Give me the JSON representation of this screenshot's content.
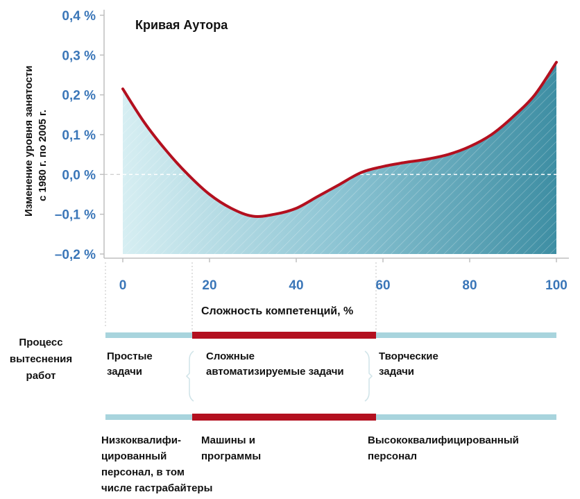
{
  "chart_data": {
    "type": "area",
    "title": "Кривая Аутора",
    "xlabel": "Сложность компетенций, %",
    "ylabel_lines": [
      "Изменение уровня занятости",
      "с 1980 г. по 2005 г."
    ],
    "xlim": [
      0,
      100
    ],
    "ylim": [
      -0.2,
      0.4
    ],
    "x_ticks": [
      {
        "value": 0,
        "label": "0"
      },
      {
        "value": 20,
        "label": "20"
      },
      {
        "value": 40,
        "label": "40"
      },
      {
        "value": 60,
        "label": "60"
      },
      {
        "value": 80,
        "label": "80"
      },
      {
        "value": 100,
        "label": "100"
      }
    ],
    "y_ticks": [
      {
        "value": 0.4,
        "label": "0,4 %"
      },
      {
        "value": 0.3,
        "label": "0,3 %"
      },
      {
        "value": 0.2,
        "label": "0,2 %"
      },
      {
        "value": 0.1,
        "label": "0,1 %"
      },
      {
        "value": 0.0,
        "label": "0,0 %"
      },
      {
        "value": -0.1,
        "label": "–0,1 %"
      },
      {
        "value": -0.2,
        "label": "–0,2 %"
      }
    ],
    "series": [
      {
        "x": [
          0,
          5,
          10,
          15,
          20,
          25,
          30,
          35,
          40,
          45,
          50,
          55,
          60,
          65,
          70,
          75,
          80,
          85,
          90,
          95,
          100
        ],
        "y": [
          0.215,
          0.13,
          0.06,
          0.0,
          -0.05,
          -0.085,
          -0.105,
          -0.1,
          -0.085,
          -0.055,
          -0.025,
          0.005,
          0.02,
          0.03,
          0.038,
          0.05,
          0.07,
          0.1,
          0.145,
          0.2,
          0.282
        ]
      }
    ],
    "grid": false,
    "reference_line_y": 0.0
  },
  "process_label": "Процесс\nвытеснения\nработ",
  "tasks": {
    "simple": "Простые\nзадачи",
    "complex": "Сложные\nавтоматизируемые задачи",
    "creative": "Творческие\nзадачи"
  },
  "workers": {
    "low": "Низкоквалифи-\nцированный\nперсонал, в том\nчисле гастрабайтеры",
    "machines": "Машины и\nпрограммы",
    "high": "Высококвалифицированный\nперсонал"
  },
  "segments_x": [
    0,
    17,
    59,
    100
  ],
  "colors": {
    "curve": "#b3101f",
    "band_light": "#a8d4dd",
    "band_red": "#b3101f",
    "tick": "#3a76b8",
    "fill_left": "#d6eef2",
    "fill_right": "#3e8ea3"
  }
}
